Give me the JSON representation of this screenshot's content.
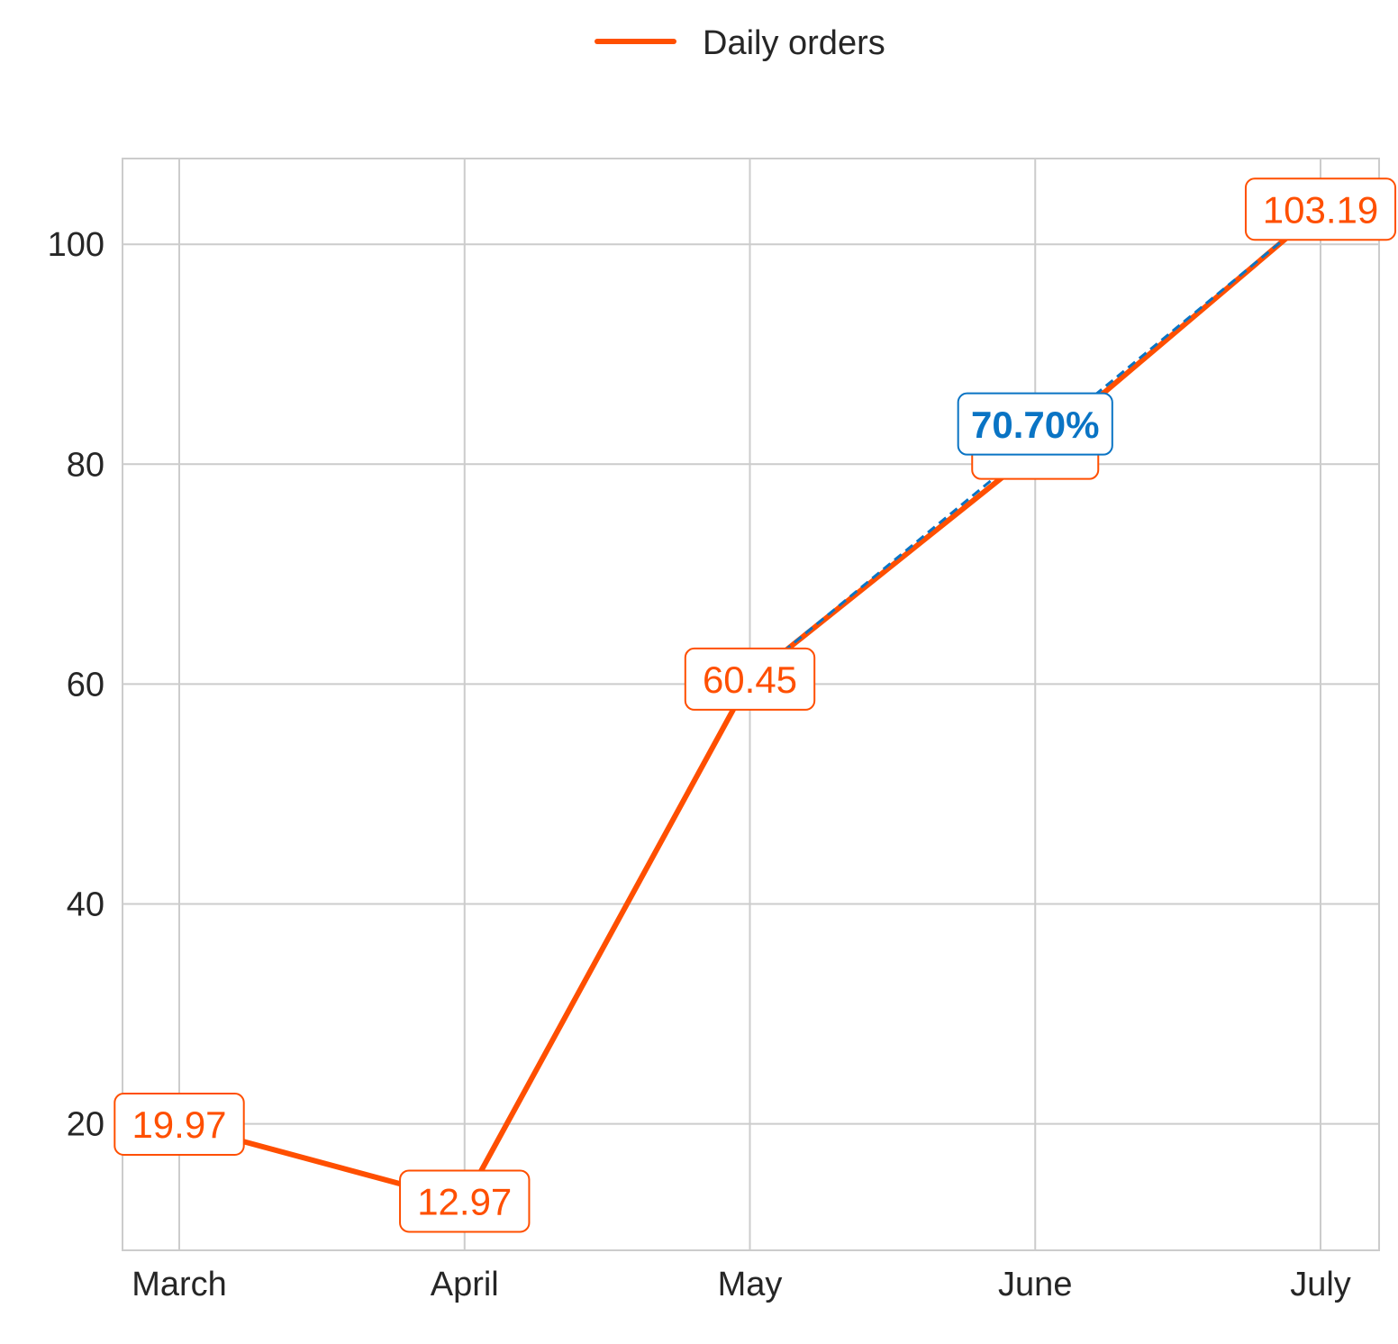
{
  "chart_data": {
    "type": "line",
    "categories": [
      "March",
      "April",
      "May",
      "June",
      "July"
    ],
    "series": [
      {
        "name": "Daily orders",
        "values": [
          19.97,
          12.97,
          60.45,
          81.2,
          103.19
        ],
        "color": "#ff4f00",
        "data_labels": [
          "19.97",
          "12.97",
          "60.45",
          "",
          "103.19"
        ]
      }
    ],
    "trend_segment": {
      "from_index": 2,
      "to_index": 4,
      "color": "#0a74c4",
      "style": "dashed"
    },
    "callout": {
      "text": "70.70%",
      "at_index": 3,
      "color": "#0a74c4"
    },
    "y_ticks": [
      20,
      40,
      60,
      80,
      100
    ],
    "ylim": [
      8.5,
      107.8
    ],
    "grid": true,
    "legend": {
      "position": "top-center"
    },
    "title": "",
    "xlabel": "",
    "ylabel": ""
  }
}
